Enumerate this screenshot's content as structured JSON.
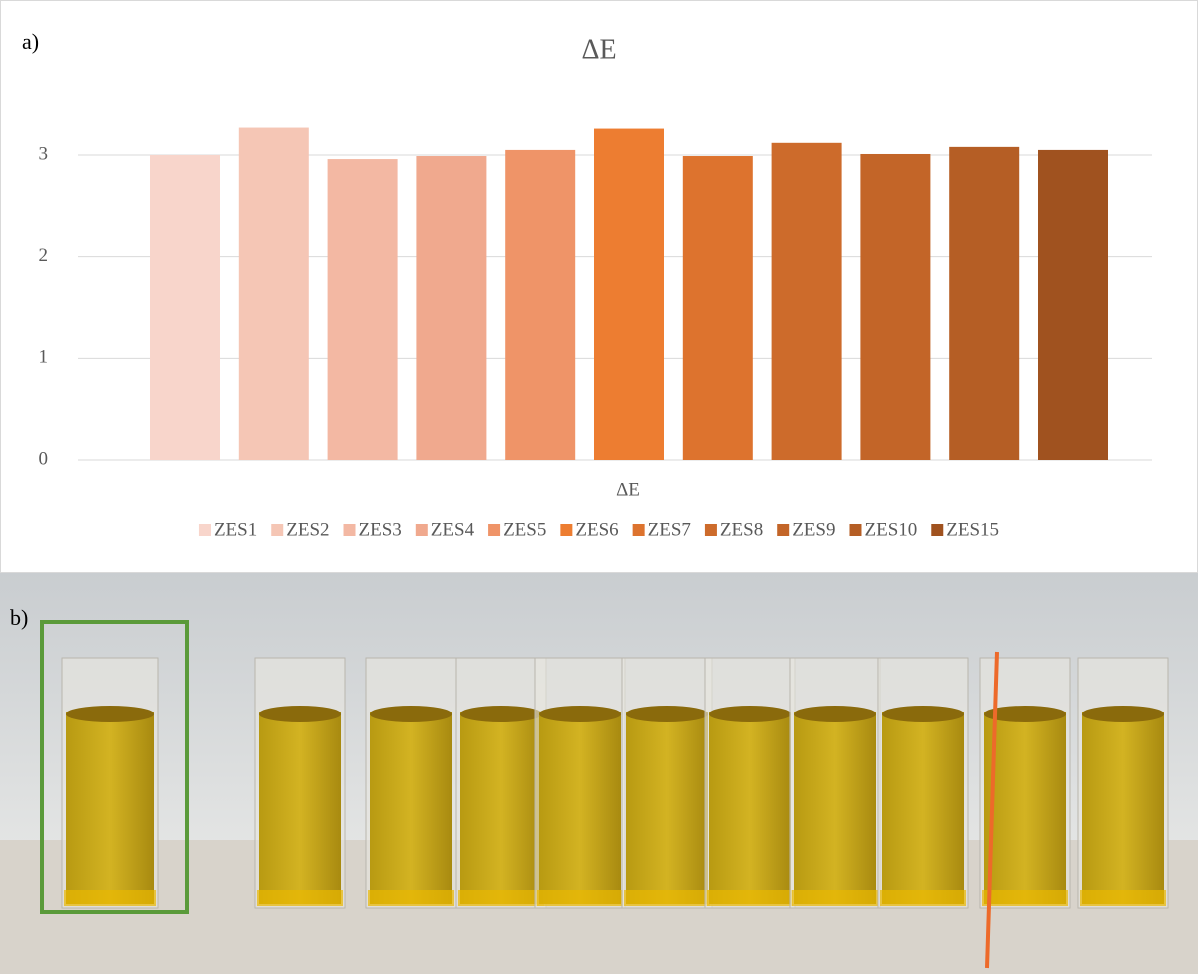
{
  "chart_data": {
    "type": "bar",
    "title": "ΔE",
    "categories": [
      "ΔE"
    ],
    "series": [
      {
        "name": "ZES1",
        "color": "#f8d5cb",
        "values": [
          3.0
        ]
      },
      {
        "name": "ZES2",
        "color": "#f5c6b5",
        "values": [
          3.27
        ]
      },
      {
        "name": "ZES3",
        "color": "#f3b8a3",
        "values": [
          2.96
        ]
      },
      {
        "name": "ZES4",
        "color": "#f0a98e",
        "values": [
          2.99
        ]
      },
      {
        "name": "ZES5",
        "color": "#ef9468",
        "values": [
          3.05
        ]
      },
      {
        "name": "ZES6",
        "color": "#ed7d31",
        "values": [
          3.26
        ]
      },
      {
        "name": "ZES7",
        "color": "#dd732e",
        "values": [
          2.99
        ]
      },
      {
        "name": "ZES8",
        "color": "#cd6b2b",
        "values": [
          3.12
        ]
      },
      {
        "name": "ZES9",
        "color": "#c36528",
        "values": [
          3.01
        ]
      },
      {
        "name": "ZES10",
        "color": "#b55e25",
        "values": [
          3.08
        ]
      },
      {
        "name": "ZES15",
        "color": "#a0521f",
        "values": [
          3.05
        ]
      }
    ],
    "ylim": [
      0,
      3
    ],
    "yticks": [
      0,
      1,
      2,
      3
    ],
    "grid": true,
    "legend": "bottom",
    "annotations": [
      "a)",
      "b)"
    ]
  }
}
